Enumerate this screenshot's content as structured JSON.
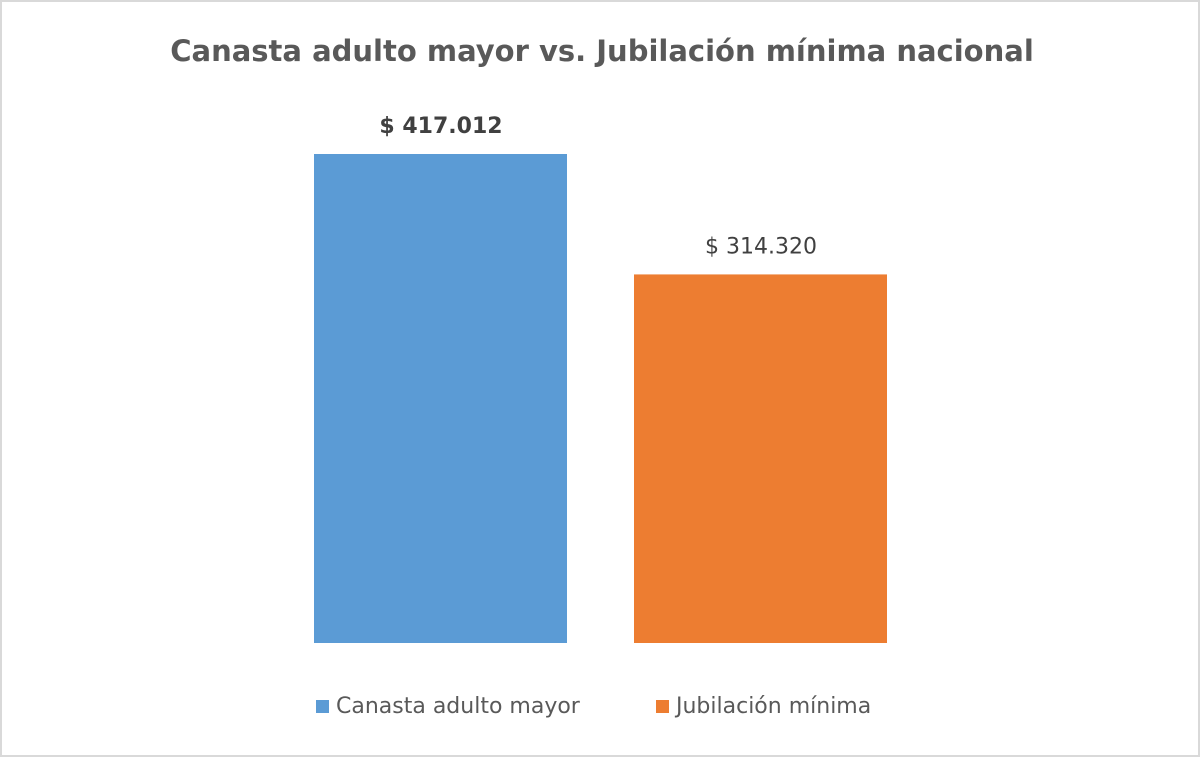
{
  "chart_data": {
    "type": "bar",
    "title": "Canasta adulto mayor vs. Jubilación mínima nacional",
    "categories": [
      null
    ],
    "series": [
      {
        "name": "Canasta adulto mayor",
        "color": "#5b9bd5",
        "values": [
          417012
        ],
        "value_labels": [
          "$ 417.012"
        ]
      },
      {
        "name": "Jubilación mínima",
        "color": "#ed7d31",
        "values": [
          314320
        ],
        "value_labels": [
          "$ 314.320"
        ]
      }
    ],
    "legend": "bottom"
  }
}
